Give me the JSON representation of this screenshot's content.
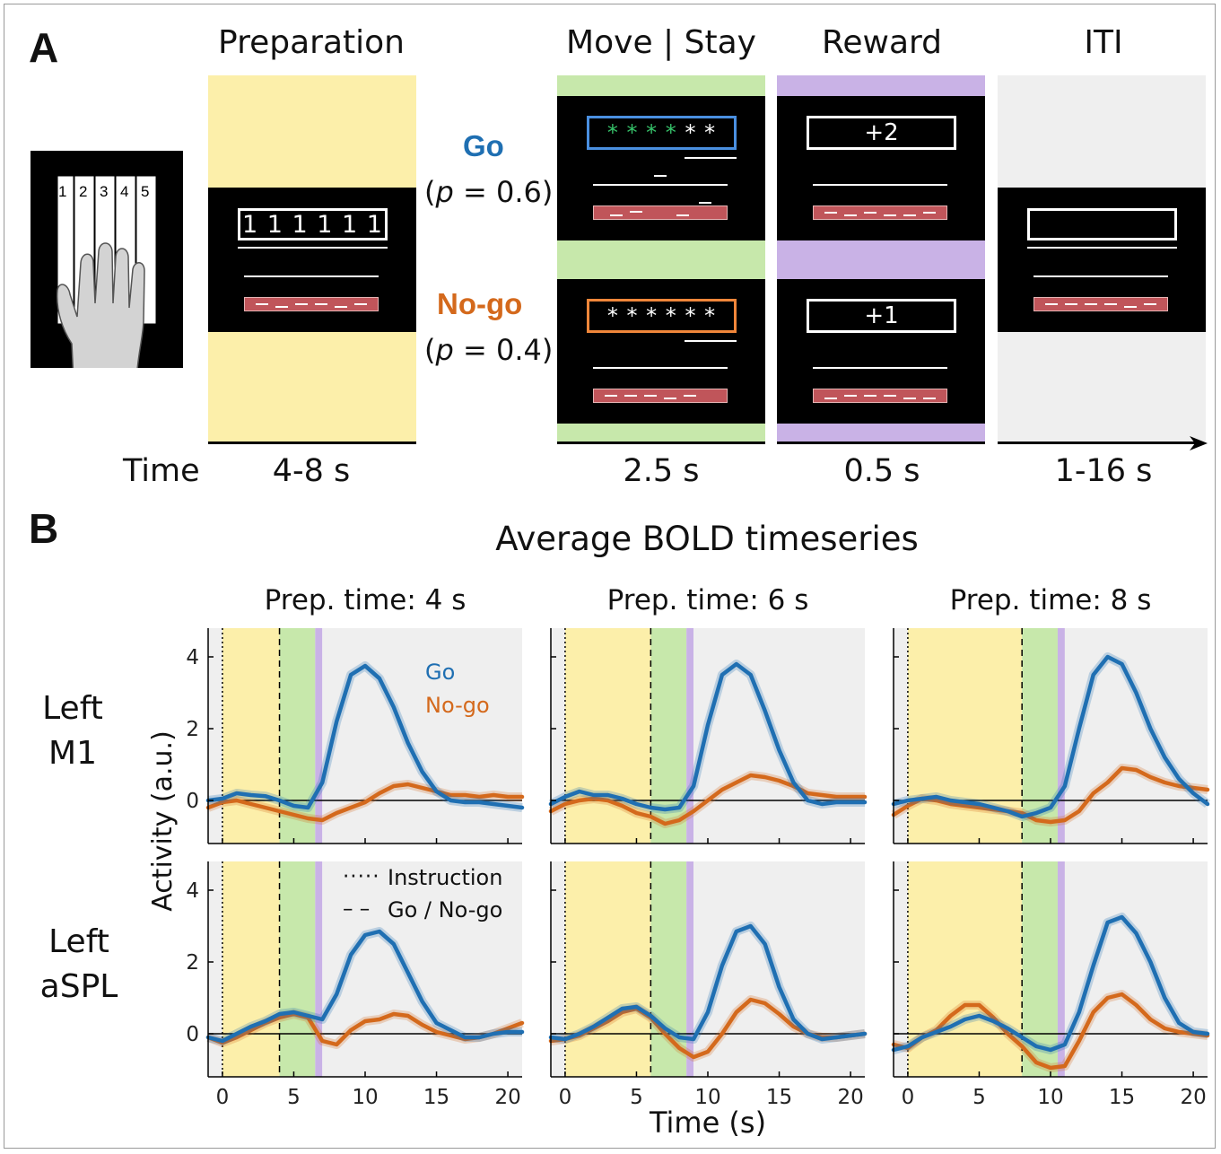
{
  "panel_a": {
    "letter": "A",
    "phases": [
      "Preparation",
      "Move | Stay",
      "Reward",
      "ITI"
    ],
    "go_label": "Go",
    "go_prob_prefix": "(",
    "go_prob_p": "p",
    "go_prob_suffix": " = 0.6)",
    "nogo_label": "No-go",
    "nogo_prob_prefix": "(",
    "nogo_prob_p": "p",
    "nogo_prob_suffix": " = 0.4)",
    "finger_numbers": [
      "1",
      "2",
      "3",
      "4",
      "5"
    ],
    "prep_digits": "1 1 1 1 1 1",
    "go_stars_green": "* * * *",
    "go_stars_white": "* *",
    "nogo_stars": "* * * * * *",
    "reward_go": "+2",
    "reward_nogo": "+1",
    "time_label": "Time",
    "durations": [
      "4-8 s",
      "2.5 s",
      "0.5 s",
      "1-16 s"
    ],
    "colors": {
      "prep": "#fcefaa",
      "move": "#c7e8ab",
      "reward": "#c9b2e6",
      "iti": "#efefef",
      "go": "#1f6fb2",
      "nogo": "#d4691c",
      "go_box": "#4a8fe0",
      "nogo_box": "#f0863a",
      "green_star": "#36c26a",
      "red_bar": "#c0555a"
    }
  },
  "panel_b": {
    "letter": "B",
    "title": "Average BOLD timeseries",
    "column_titles": [
      "Prep. time: 4 s",
      "Prep. time: 6 s",
      "Prep. time: 8 s"
    ],
    "row_labels": [
      [
        "Left",
        "M1"
      ],
      [
        "Left",
        "aSPL"
      ]
    ],
    "ylabel": "Activity (a.u.)",
    "xlabel": "Time (s)",
    "legend_go": "Go",
    "legend_nogo": "No-go",
    "legend_instruction": "Instruction",
    "legend_gonogo": "Go / No-go",
    "line_instruction_sample": "·····",
    "line_gonogo_sample": "– –"
  },
  "chart_data": [
    {
      "type": "line",
      "title": "Prep. time: 4 s",
      "row": "Left M1",
      "prep_time": 4,
      "xlim": [
        -1,
        21
      ],
      "ylim": [
        -1.2,
        4.8
      ],
      "xticks": [
        0,
        5,
        10,
        15,
        20
      ],
      "yticks": [
        0,
        2,
        4
      ],
      "x": [
        -1,
        0,
        1,
        2,
        3,
        4,
        5,
        6,
        7,
        8,
        9,
        10,
        11,
        12,
        13,
        14,
        15,
        16,
        17,
        18,
        19,
        20,
        21
      ],
      "series": [
        {
          "name": "Go",
          "values": [
            0.0,
            0.05,
            0.2,
            0.15,
            0.12,
            0.0,
            -0.15,
            -0.2,
            0.5,
            2.2,
            3.5,
            3.75,
            3.4,
            2.6,
            1.6,
            0.8,
            0.25,
            0.0,
            -0.05,
            -0.05,
            -0.1,
            -0.15,
            -0.2
          ]
        },
        {
          "name": "No-go",
          "values": [
            -0.2,
            -0.05,
            0.0,
            -0.1,
            -0.2,
            -0.3,
            -0.4,
            -0.5,
            -0.55,
            -0.35,
            -0.2,
            -0.05,
            0.2,
            0.4,
            0.45,
            0.35,
            0.25,
            0.15,
            0.15,
            0.1,
            0.15,
            0.1,
            0.1
          ]
        }
      ]
    },
    {
      "type": "line",
      "title": "Prep. time: 6 s",
      "row": "Left M1",
      "prep_time": 6,
      "xlim": [
        -1,
        21
      ],
      "ylim": [
        -1.2,
        4.8
      ],
      "xticks": [
        0,
        5,
        10,
        15,
        20
      ],
      "yticks": [
        0,
        2,
        4
      ],
      "x": [
        -1,
        0,
        1,
        2,
        3,
        4,
        5,
        6,
        7,
        8,
        9,
        10,
        11,
        12,
        13,
        14,
        15,
        16,
        17,
        18,
        19,
        20,
        21
      ],
      "series": [
        {
          "name": "Go",
          "values": [
            -0.1,
            0.1,
            0.25,
            0.15,
            0.15,
            0.05,
            -0.1,
            -0.2,
            -0.25,
            -0.2,
            0.4,
            2.1,
            3.5,
            3.8,
            3.5,
            2.5,
            1.4,
            0.5,
            0.0,
            -0.1,
            -0.05,
            -0.05,
            -0.05
          ]
        },
        {
          "name": "No-go",
          "values": [
            -0.3,
            -0.1,
            0.0,
            0.05,
            0.0,
            -0.15,
            -0.35,
            -0.45,
            -0.65,
            -0.55,
            -0.3,
            0.0,
            0.3,
            0.5,
            0.7,
            0.65,
            0.55,
            0.4,
            0.2,
            0.15,
            0.1,
            0.1,
            0.1
          ]
        }
      ]
    },
    {
      "type": "line",
      "title": "Prep. time: 8 s",
      "row": "Left M1",
      "prep_time": 8,
      "xlim": [
        -1,
        21
      ],
      "ylim": [
        -1.2,
        4.8
      ],
      "xticks": [
        0,
        5,
        10,
        15,
        20
      ],
      "yticks": [
        0,
        2,
        4
      ],
      "x": [
        -1,
        0,
        1,
        2,
        3,
        4,
        5,
        6,
        7,
        8,
        9,
        10,
        11,
        12,
        13,
        14,
        15,
        16,
        17,
        18,
        19,
        20,
        21
      ],
      "series": [
        {
          "name": "Go",
          "values": [
            -0.1,
            0.0,
            0.05,
            0.1,
            0.0,
            -0.05,
            -0.1,
            -0.2,
            -0.3,
            -0.45,
            -0.35,
            -0.2,
            0.4,
            2.0,
            3.5,
            4.0,
            3.8,
            3.0,
            2.0,
            1.2,
            0.6,
            0.2,
            -0.1
          ]
        },
        {
          "name": "No-go",
          "values": [
            -0.4,
            -0.15,
            0.05,
            0.0,
            -0.1,
            -0.15,
            -0.2,
            -0.25,
            -0.3,
            -0.35,
            -0.55,
            -0.6,
            -0.55,
            -0.3,
            0.2,
            0.5,
            0.9,
            0.85,
            0.65,
            0.5,
            0.4,
            0.35,
            0.3
          ]
        }
      ]
    },
    {
      "type": "line",
      "title": "Prep. time: 4 s",
      "row": "Left aSPL",
      "prep_time": 4,
      "xlim": [
        -1,
        21
      ],
      "ylim": [
        -1.2,
        4.8
      ],
      "xticks": [
        0,
        5,
        10,
        15,
        20
      ],
      "yticks": [
        0,
        2,
        4
      ],
      "x": [
        -1,
        0,
        1,
        2,
        3,
        4,
        5,
        6,
        7,
        8,
        9,
        10,
        11,
        12,
        13,
        14,
        15,
        16,
        17,
        18,
        19,
        20,
        21
      ],
      "series": [
        {
          "name": "Go",
          "values": [
            -0.1,
            -0.2,
            0.0,
            0.2,
            0.35,
            0.55,
            0.6,
            0.5,
            0.4,
            1.1,
            2.2,
            2.75,
            2.85,
            2.5,
            1.7,
            0.9,
            0.3,
            0.1,
            -0.1,
            -0.1,
            0.0,
            0.05,
            0.05
          ]
        },
        {
          "name": "No-go",
          "values": [
            -0.1,
            -0.25,
            -0.1,
            0.1,
            0.3,
            0.45,
            0.55,
            0.45,
            -0.2,
            -0.3,
            0.1,
            0.35,
            0.4,
            0.55,
            0.5,
            0.25,
            0.05,
            -0.05,
            -0.15,
            -0.1,
            0.0,
            0.15,
            0.3
          ]
        }
      ]
    },
    {
      "type": "line",
      "title": "Prep. time: 6 s",
      "row": "Left aSPL",
      "prep_time": 6,
      "xlim": [
        -1,
        21
      ],
      "ylim": [
        -1.2,
        4.8
      ],
      "xticks": [
        0,
        5,
        10,
        15,
        20
      ],
      "yticks": [
        0,
        2,
        4
      ],
      "x": [
        -1,
        0,
        1,
        2,
        3,
        4,
        5,
        6,
        7,
        8,
        9,
        10,
        11,
        12,
        13,
        14,
        15,
        16,
        17,
        18,
        19,
        20,
        21
      ],
      "series": [
        {
          "name": "Go",
          "values": [
            -0.1,
            -0.15,
            0.0,
            0.2,
            0.45,
            0.7,
            0.75,
            0.5,
            0.15,
            -0.1,
            -0.15,
            0.6,
            1.9,
            2.85,
            3.0,
            2.5,
            1.3,
            0.4,
            0.0,
            -0.15,
            -0.1,
            -0.05,
            0.0
          ]
        },
        {
          "name": "No-go",
          "values": [
            -0.2,
            -0.15,
            -0.05,
            0.15,
            0.35,
            0.6,
            0.7,
            0.45,
            0.0,
            -0.4,
            -0.65,
            -0.5,
            0.0,
            0.6,
            0.95,
            0.85,
            0.55,
            0.2,
            0.0,
            -0.1,
            -0.1,
            -0.05,
            0.0
          ]
        }
      ]
    },
    {
      "type": "line",
      "title": "Prep. time: 8 s",
      "row": "Left aSPL",
      "prep_time": 8,
      "xlim": [
        -1,
        21
      ],
      "ylim": [
        -1.2,
        4.8
      ],
      "xticks": [
        0,
        5,
        10,
        15,
        20
      ],
      "yticks": [
        0,
        2,
        4
      ],
      "x": [
        -1,
        0,
        1,
        2,
        3,
        4,
        5,
        6,
        7,
        8,
        9,
        10,
        11,
        12,
        13,
        14,
        15,
        16,
        17,
        18,
        19,
        20,
        21
      ],
      "series": [
        {
          "name": "Go",
          "values": [
            -0.45,
            -0.35,
            -0.1,
            0.05,
            0.2,
            0.4,
            0.5,
            0.35,
            0.15,
            -0.1,
            -0.35,
            -0.45,
            -0.3,
            0.6,
            1.9,
            3.1,
            3.25,
            2.8,
            2.0,
            1.0,
            0.3,
            0.05,
            0.0
          ]
        },
        {
          "name": "No-go",
          "values": [
            -0.3,
            -0.4,
            -0.1,
            0.1,
            0.5,
            0.8,
            0.8,
            0.45,
            0.0,
            -0.35,
            -0.8,
            -0.95,
            -0.9,
            -0.2,
            0.6,
            1.0,
            1.1,
            0.8,
            0.4,
            0.15,
            0.05,
            0.0,
            -0.05
          ]
        }
      ]
    }
  ]
}
